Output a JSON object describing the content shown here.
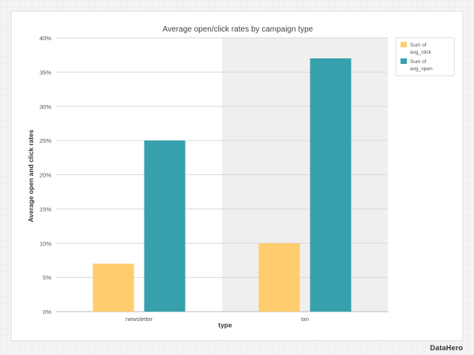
{
  "brand": "DataHero",
  "chart_data": {
    "type": "bar",
    "title": "Average open/click rates by campaign type",
    "xlabel": "type",
    "ylabel": "Average open and click rates",
    "categories": [
      "newsletter",
      "txn"
    ],
    "series": [
      {
        "name": "Sum of avg_click",
        "legend_lines": [
          "Sum of",
          "avg_click"
        ],
        "color": "#ffcc6e",
        "values": [
          7,
          10
        ]
      },
      {
        "name": "Sum of avg_open",
        "legend_lines": [
          "Sum of",
          "avg_open"
        ],
        "color": "#36a0ad",
        "values": [
          25,
          37
        ]
      }
    ],
    "yticks": [
      0,
      5,
      10,
      15,
      20,
      25,
      30,
      35,
      40
    ],
    "ytick_labels": [
      "0%",
      "5%",
      "10%",
      "15%",
      "20%",
      "25%",
      "30%",
      "35%",
      "40%"
    ],
    "ylim": [
      0,
      40
    ],
    "highlighted_category": "txn",
    "highlight_color": "#efefef",
    "grid": true,
    "legend_position": "top-right"
  }
}
